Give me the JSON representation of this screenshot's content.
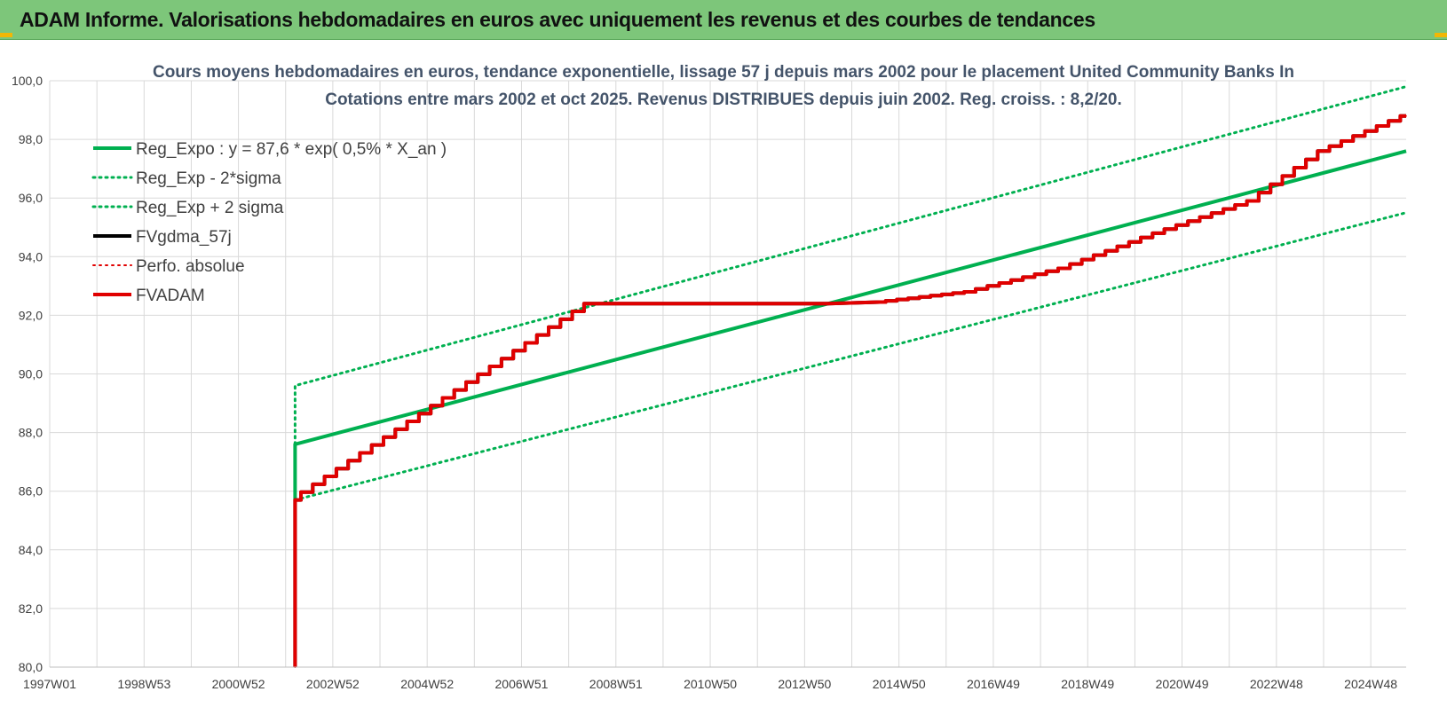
{
  "header": {
    "banner_title": "ADAM Informe. Valorisations hebdomadaires en euros avec uniquement les revenus et des courbes de tendances"
  },
  "colors": {
    "banner_bg": "#7dc67a",
    "green": "#00b050",
    "red": "#e00000",
    "black": "#000000",
    "grid": "#d9d9d9",
    "title": "#44546a"
  },
  "chart_data": {
    "type": "line",
    "title_lines": [
      "Cours moyens hebdomadaires en euros, tendance exponentielle, lissage 57 j depuis mars 2002 pour le placement United Community Banks In",
      "Cotations entre mars 2002 et oct 2025. Revenus DISTRIBUES depuis juin 2002. Reg. croiss. : 8,2/20."
    ],
    "xlabel": "",
    "ylabel": "",
    "ylim": [
      80,
      100
    ],
    "yticks": [
      "80,0",
      "82,0",
      "84,0",
      "86,0",
      "88,0",
      "90,0",
      "92,0",
      "94,0",
      "96,0",
      "98,0",
      "100,0"
    ],
    "xlim": [
      1997.0,
      2025.75
    ],
    "xticks": [
      {
        "label": "1997W01",
        "year": 1997.0
      },
      {
        "label": "1998W53",
        "year": 1999.0
      },
      {
        "label": "2000W52",
        "year": 2001.0
      },
      {
        "label": "2002W52",
        "year": 2003.0
      },
      {
        "label": "2004W52",
        "year": 2005.0
      },
      {
        "label": "2006W51",
        "year": 2007.0
      },
      {
        "label": "2008W51",
        "year": 2009.0
      },
      {
        "label": "2010W50",
        "year": 2011.0
      },
      {
        "label": "2012W50",
        "year": 2013.0
      },
      {
        "label": "2014W50",
        "year": 2015.0
      },
      {
        "label": "2016W49",
        "year": 2017.0
      },
      {
        "label": "2018W49",
        "year": 2019.0
      },
      {
        "label": "2020W49",
        "year": 2021.0
      },
      {
        "label": "2022W48",
        "year": 2023.0
      },
      {
        "label": "2024W48",
        "year": 2025.0
      }
    ],
    "grid": true,
    "legend_position": "top-left",
    "series": [
      {
        "name": "Reg_Expo : y = 87,6 * exp( 0,5% *  X_an )",
        "color": "#00b050",
        "style": "solid",
        "width": 4,
        "x": [
          2002.2,
          2002.2,
          2025.75
        ],
        "y": [
          85.7,
          87.6,
          97.6
        ]
      },
      {
        "name": "Reg_Exp - 2*sigma",
        "color": "#00b050",
        "style": "dotted",
        "width": 3,
        "x": [
          2002.2,
          2025.75
        ],
        "y": [
          85.7,
          95.5
        ]
      },
      {
        "name": "Reg_Exp + 2 sigma",
        "color": "#00b050",
        "style": "dotted",
        "width": 3,
        "x": [
          2002.2,
          2002.2,
          2025.75
        ],
        "y": [
          87.6,
          89.6,
          99.8
        ]
      },
      {
        "name": "FVgdma_57j",
        "color": "#000000",
        "style": "solid",
        "width": 4,
        "x": [
          2002.2,
          2002.2,
          2002.2,
          2008.45,
          2013.5,
          2014.6,
          2016.5,
          2018.5,
          2020.5,
          2022.5,
          2024.0,
          2025.75
        ],
        "y": [
          80.0,
          85.7,
          85.7,
          92.4,
          92.4,
          92.45,
          92.8,
          93.6,
          94.8,
          95.9,
          97.6,
          98.8
        ]
      },
      {
        "name": "Perfo. absolue",
        "color": "#e00000",
        "style": "dotted",
        "width": 2,
        "x": [
          2002.2,
          2002.2,
          2002.2,
          2008.45,
          2013.5,
          2014.6,
          2016.5,
          2018.5,
          2020.5,
          2022.5,
          2024.0,
          2025.75
        ],
        "y": [
          80.0,
          85.7,
          85.7,
          92.4,
          92.4,
          92.45,
          92.8,
          93.6,
          94.8,
          95.9,
          97.6,
          98.8
        ]
      },
      {
        "name": "FVADAM",
        "color": "#e00000",
        "style": "solid",
        "width": 4,
        "x": [
          2002.2,
          2002.2,
          2002.2,
          2008.45,
          2013.5,
          2014.6,
          2016.5,
          2018.5,
          2020.5,
          2022.5,
          2024.0,
          2025.75
        ],
        "y": [
          80.0,
          85.7,
          85.7,
          92.4,
          92.4,
          92.45,
          92.8,
          93.6,
          94.8,
          95.9,
          97.6,
          98.8
        ]
      }
    ]
  }
}
